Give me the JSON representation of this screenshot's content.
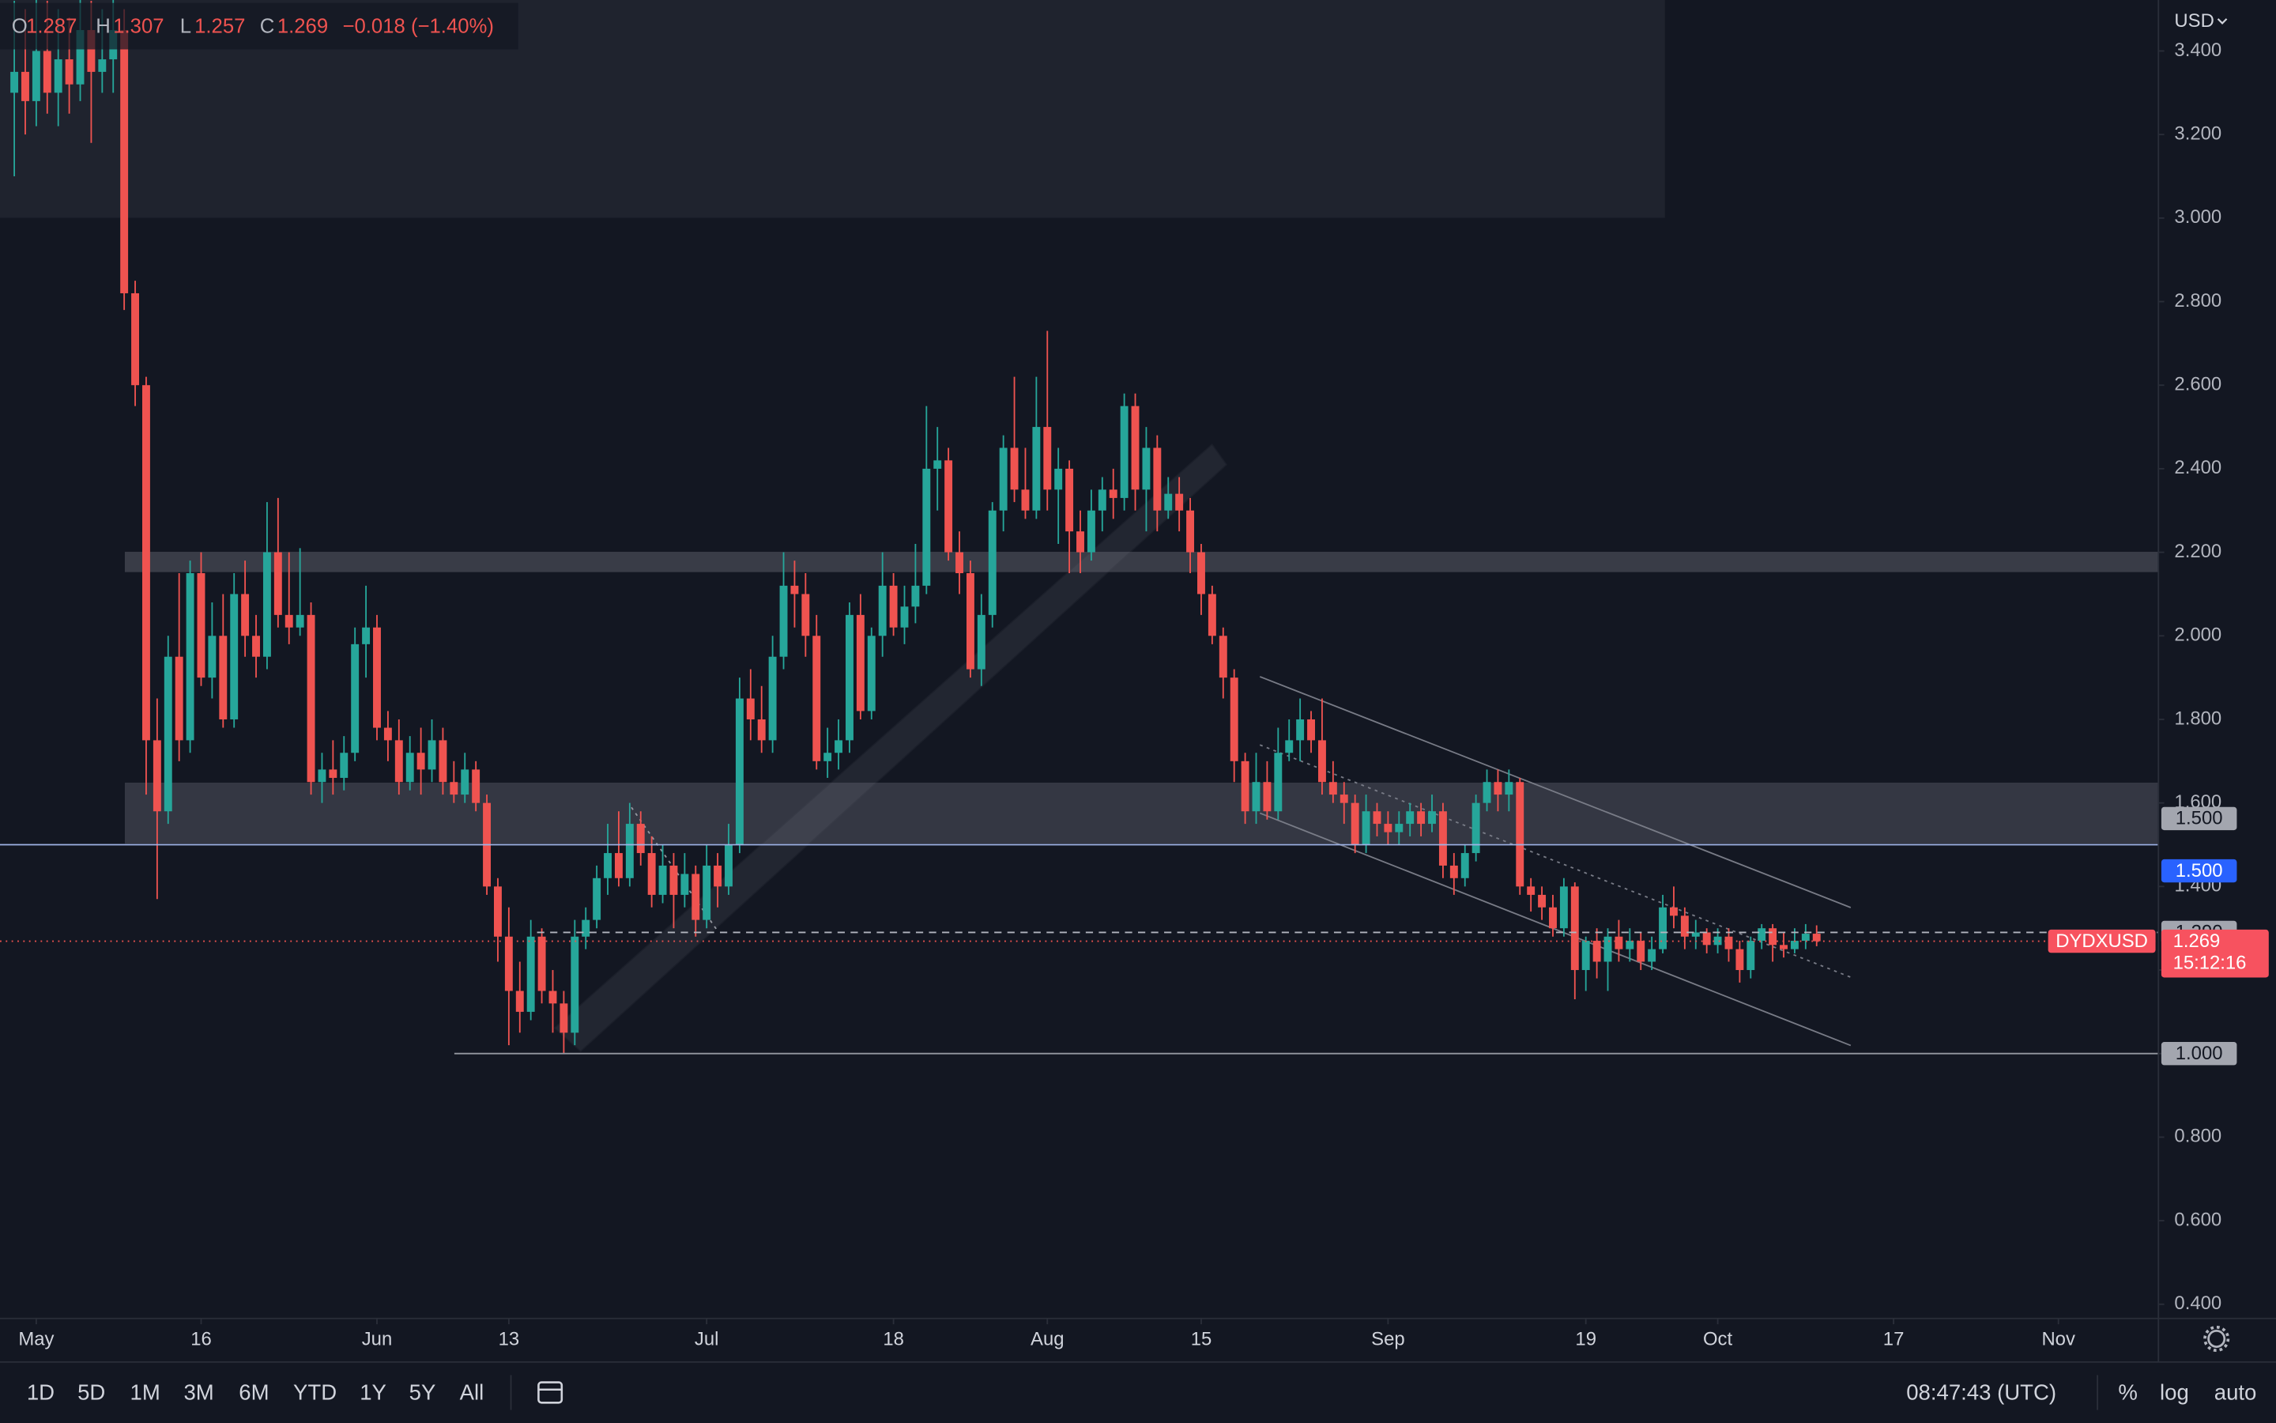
{
  "chart_data": {
    "type": "candlestick",
    "symbol": "DYDXUSD",
    "currency": "USD",
    "countdown": "15:12:16",
    "change": "−0.018 (−1.40%)",
    "ohlc_letters": [
      "O",
      "H",
      "L",
      "C"
    ],
    "up_color": "#26a69a",
    "down_color": "#ef5350",
    "grid": false,
    "xlim": [
      -3.3,
      193.1
    ],
    "xticks": [
      {
        "value": 0,
        "label": "May"
      },
      {
        "value": 15,
        "label": "16"
      },
      {
        "value": 31,
        "label": "Jun"
      },
      {
        "value": 43,
        "label": "13"
      },
      {
        "value": 61,
        "label": "Jul"
      },
      {
        "value": 78,
        "label": "18"
      },
      {
        "value": 92,
        "label": "Aug"
      },
      {
        "value": 106,
        "label": "15"
      },
      {
        "value": 123,
        "label": "Sep"
      },
      {
        "value": 141,
        "label": "19"
      },
      {
        "value": 153,
        "label": "Oct"
      },
      {
        "value": 169,
        "label": "17"
      },
      {
        "value": 184,
        "label": "Nov"
      }
    ],
    "ylim": [
      0.366,
      3.522
    ],
    "yticks": [
      {
        "value": 0.4,
        "label": "0.400"
      },
      {
        "value": 0.6,
        "label": "0.600"
      },
      {
        "value": 0.8,
        "label": "0.800"
      },
      {
        "value": 1.0,
        "label": "1.000"
      },
      {
        "value": 1.2,
        "label": "1.200"
      },
      {
        "value": 1.4,
        "label": "1.400"
      },
      {
        "value": 1.6,
        "label": "1.600"
      },
      {
        "value": 1.8,
        "label": "1.800"
      },
      {
        "value": 2.0,
        "label": "2.000"
      },
      {
        "value": 2.2,
        "label": "2.200"
      },
      {
        "value": 2.4,
        "label": "2.400"
      },
      {
        "value": 2.6,
        "label": "2.600"
      },
      {
        "value": 2.8,
        "label": "2.800"
      },
      {
        "value": 3.0,
        "label": "3.000"
      },
      {
        "value": 3.2,
        "label": "3.200"
      },
      {
        "value": 3.4,
        "label": "3.400"
      }
    ],
    "levels": [
      {
        "value": 1.5,
        "label": "1.500",
        "color": "#a3a6af"
      },
      {
        "value": 1.5,
        "label": "1.500",
        "color": "#2962ff"
      },
      {
        "value": 1.29,
        "label": "1.290",
        "color": "#a3a6af"
      },
      {
        "value": 1.0,
        "label": "1.000",
        "color": "#a3a6af"
      }
    ],
    "x": [
      -2,
      -1,
      0,
      1,
      2,
      3,
      4,
      5,
      6,
      7,
      8,
      9,
      10,
      11,
      12,
      13,
      14,
      15,
      16,
      17,
      18,
      19,
      20,
      21,
      22,
      23,
      24,
      25,
      26,
      27,
      28,
      29,
      30,
      31,
      32,
      33,
      34,
      35,
      36,
      37,
      38,
      39,
      40,
      41,
      42,
      43,
      44,
      45,
      46,
      47,
      48,
      49,
      50,
      51,
      52,
      53,
      54,
      55,
      56,
      57,
      58,
      59,
      60,
      61,
      62,
      63,
      64,
      65,
      66,
      67,
      68,
      69,
      70,
      71,
      72,
      73,
      74,
      75,
      76,
      77,
      78,
      79,
      80,
      81,
      82,
      83,
      84,
      85,
      86,
      87,
      88,
      89,
      90,
      91,
      92,
      93,
      94,
      95,
      96,
      97,
      98,
      99,
      100,
      101,
      102,
      103,
      104,
      105,
      106,
      107,
      108,
      109,
      110,
      111,
      112,
      113,
      114,
      115,
      116,
      117,
      118,
      119,
      120,
      121,
      122,
      123,
      124,
      125,
      126,
      127,
      128,
      129,
      130,
      131,
      132,
      133,
      134,
      135,
      136,
      137,
      138,
      139,
      140,
      141,
      142,
      143,
      144,
      145,
      146,
      147,
      148,
      149,
      150,
      151,
      152,
      153,
      154,
      155,
      156,
      157,
      158,
      159,
      160,
      161,
      162
    ],
    "open": [
      3.3,
      3.35,
      3.28,
      3.4,
      3.3,
      3.38,
      3.32,
      3.45,
      3.35,
      3.38,
      3.45,
      2.82,
      2.6,
      1.75,
      1.58,
      1.95,
      1.75,
      2.15,
      1.9,
      2.0,
      1.8,
      2.1,
      2.0,
      1.95,
      2.2,
      2.05,
      2.02,
      2.05,
      1.65,
      1.68,
      1.66,
      1.72,
      1.98,
      2.02,
      1.78,
      1.75,
      1.65,
      1.72,
      1.68,
      1.75,
      1.65,
      1.62,
      1.68,
      1.6,
      1.4,
      1.28,
      1.15,
      1.1,
      1.28,
      1.15,
      1.12,
      1.05,
      1.28,
      1.32,
      1.42,
      1.48,
      1.42,
      1.55,
      1.48,
      1.38,
      1.45,
      1.38,
      1.43,
      1.32,
      1.45,
      1.4,
      1.5,
      1.85,
      1.8,
      1.75,
      1.95,
      2.12,
      2.1,
      2.0,
      1.7,
      1.72,
      1.75,
      2.05,
      1.82,
      2.0,
      2.12,
      2.02,
      2.07,
      2.12,
      2.4,
      2.42,
      2.2,
      2.15,
      1.92,
      2.05,
      2.3,
      2.45,
      2.35,
      2.3,
      2.5,
      2.35,
      2.4,
      2.25,
      2.2,
      2.3,
      2.35,
      2.33,
      2.55,
      2.35,
      2.45,
      2.3,
      2.34,
      2.3,
      2.2,
      2.1,
      2.0,
      1.9,
      1.7,
      1.58,
      1.65,
      1.58,
      1.72,
      1.75,
      1.8,
      1.75,
      1.65,
      1.62,
      1.6,
      1.5,
      1.58,
      1.55,
      1.53,
      1.55,
      1.58,
      1.55,
      1.58,
      1.45,
      1.42,
      1.48,
      1.6,
      1.65,
      1.62,
      1.65,
      1.4,
      1.38,
      1.35,
      1.3,
      1.4,
      1.2,
      1.27,
      1.22,
      1.28,
      1.25,
      1.27,
      1.22,
      1.25,
      1.35,
      1.33,
      1.28,
      1.29,
      1.26,
      1.28,
      1.25,
      1.2,
      1.27,
      1.3,
      1.26,
      1.25,
      1.27,
      1.287
    ],
    "high": [
      3.52,
      3.5,
      3.55,
      3.52,
      3.5,
      3.48,
      3.55,
      3.52,
      3.5,
      3.56,
      3.5,
      2.85,
      2.62,
      1.85,
      2.0,
      2.15,
      2.18,
      2.2,
      2.08,
      2.1,
      2.15,
      2.18,
      2.05,
      2.32,
      2.33,
      2.2,
      2.21,
      2.08,
      1.72,
      1.75,
      1.76,
      2.02,
      2.12,
      2.05,
      1.82,
      1.8,
      1.76,
      1.78,
      1.8,
      1.78,
      1.7,
      1.72,
      1.7,
      1.62,
      1.42,
      1.35,
      1.22,
      1.32,
      1.3,
      1.2,
      1.15,
      1.32,
      1.35,
      1.45,
      1.55,
      1.58,
      1.6,
      1.58,
      1.52,
      1.5,
      1.48,
      1.48,
      1.45,
      1.5,
      1.48,
      1.55,
      1.9,
      1.92,
      1.88,
      2.0,
      2.2,
      2.18,
      2.15,
      2.05,
      1.78,
      1.8,
      2.08,
      2.1,
      2.02,
      2.2,
      2.15,
      2.12,
      2.22,
      2.55,
      2.5,
      2.45,
      2.25,
      2.18,
      2.1,
      2.32,
      2.48,
      2.62,
      2.45,
      2.62,
      2.73,
      2.45,
      2.42,
      2.3,
      2.35,
      2.38,
      2.4,
      2.58,
      2.58,
      2.5,
      2.48,
      2.38,
      2.38,
      2.33,
      2.22,
      2.12,
      2.02,
      1.92,
      1.72,
      1.72,
      1.7,
      1.78,
      1.8,
      1.85,
      1.82,
      1.85,
      1.7,
      1.65,
      1.62,
      1.62,
      1.6,
      1.58,
      1.58,
      1.6,
      1.6,
      1.62,
      1.6,
      1.48,
      1.5,
      1.62,
      1.68,
      1.68,
      1.68,
      1.66,
      1.42,
      1.4,
      1.38,
      1.42,
      1.41,
      1.28,
      1.3,
      1.3,
      1.32,
      1.3,
      1.29,
      1.28,
      1.38,
      1.4,
      1.35,
      1.32,
      1.3,
      1.3,
      1.3,
      1.27,
      1.28,
      1.31,
      1.31,
      1.29,
      1.3,
      1.31,
      1.307
    ],
    "low": [
      3.1,
      3.2,
      3.22,
      3.25,
      3.22,
      3.25,
      3.28,
      3.18,
      3.3,
      3.3,
      2.78,
      2.55,
      1.62,
      1.37,
      1.55,
      1.7,
      1.72,
      1.88,
      1.85,
      1.78,
      1.78,
      1.95,
      1.9,
      1.92,
      2.02,
      1.98,
      2.0,
      1.62,
      1.6,
      1.62,
      1.63,
      1.7,
      1.9,
      1.75,
      1.7,
      1.62,
      1.63,
      1.62,
      1.65,
      1.62,
      1.6,
      1.6,
      1.58,
      1.38,
      1.22,
      1.02,
      1.05,
      1.08,
      1.12,
      1.05,
      1.0,
      1.02,
      1.25,
      1.3,
      1.38,
      1.4,
      1.4,
      1.45,
      1.35,
      1.36,
      1.3,
      1.35,
      1.28,
      1.3,
      1.35,
      1.38,
      1.48,
      1.75,
      1.72,
      1.72,
      1.92,
      2.02,
      1.95,
      1.68,
      1.66,
      1.68,
      1.72,
      1.8,
      1.8,
      1.95,
      2.0,
      1.98,
      2.03,
      2.1,
      2.3,
      2.18,
      2.1,
      1.9,
      1.88,
      2.02,
      2.25,
      2.32,
      2.28,
      2.28,
      2.3,
      2.22,
      2.15,
      2.15,
      2.18,
      2.25,
      2.28,
      2.3,
      2.3,
      2.25,
      2.25,
      2.28,
      2.25,
      2.15,
      2.05,
      1.98,
      1.85,
      1.65,
      1.55,
      1.55,
      1.56,
      1.56,
      1.7,
      1.7,
      1.72,
      1.62,
      1.6,
      1.55,
      1.48,
      1.48,
      1.52,
      1.5,
      1.5,
      1.52,
      1.52,
      1.53,
      1.42,
      1.38,
      1.4,
      1.46,
      1.58,
      1.58,
      1.58,
      1.38,
      1.34,
      1.32,
      1.28,
      1.28,
      1.13,
      1.15,
      1.18,
      1.15,
      1.22,
      1.22,
      1.2,
      1.2,
      1.24,
      1.3,
      1.25,
      1.25,
      1.24,
      1.24,
      1.22,
      1.17,
      1.18,
      1.25,
      1.22,
      1.23,
      1.24,
      1.25,
      1.257
    ],
    "close": [
      3.35,
      3.28,
      3.4,
      3.3,
      3.38,
      3.32,
      3.45,
      3.35,
      3.38,
      3.45,
      2.82,
      2.6,
      1.75,
      1.58,
      1.95,
      1.75,
      2.15,
      1.9,
      2.0,
      1.8,
      2.1,
      2.0,
      1.95,
      2.2,
      2.05,
      2.02,
      2.05,
      1.65,
      1.68,
      1.66,
      1.72,
      1.98,
      2.02,
      1.78,
      1.75,
      1.65,
      1.72,
      1.68,
      1.75,
      1.65,
      1.62,
      1.68,
      1.6,
      1.4,
      1.28,
      1.15,
      1.1,
      1.28,
      1.15,
      1.12,
      1.05,
      1.28,
      1.32,
      1.42,
      1.48,
      1.42,
      1.55,
      1.48,
      1.38,
      1.45,
      1.38,
      1.43,
      1.32,
      1.45,
      1.4,
      1.5,
      1.85,
      1.8,
      1.75,
      1.95,
      2.12,
      2.1,
      2.0,
      1.7,
      1.72,
      1.75,
      2.05,
      1.82,
      2.0,
      2.12,
      2.02,
      2.07,
      2.12,
      2.4,
      2.42,
      2.2,
      2.15,
      1.92,
      2.05,
      2.3,
      2.45,
      2.35,
      2.3,
      2.5,
      2.35,
      2.4,
      2.25,
      2.2,
      2.3,
      2.35,
      2.33,
      2.55,
      2.35,
      2.45,
      2.3,
      2.34,
      2.3,
      2.2,
      2.1,
      2.0,
      1.9,
      1.7,
      1.58,
      1.65,
      1.58,
      1.72,
      1.75,
      1.8,
      1.75,
      1.65,
      1.62,
      1.6,
      1.5,
      1.58,
      1.55,
      1.53,
      1.55,
      1.58,
      1.55,
      1.58,
      1.45,
      1.42,
      1.48,
      1.6,
      1.65,
      1.62,
      1.65,
      1.4,
      1.38,
      1.35,
      1.3,
      1.4,
      1.2,
      1.27,
      1.22,
      1.28,
      1.25,
      1.27,
      1.22,
      1.25,
      1.35,
      1.33,
      1.28,
      1.29,
      1.26,
      1.28,
      1.25,
      1.2,
      1.27,
      1.3,
      1.26,
      1.25,
      1.27,
      1.287,
      1.269
    ]
  },
  "toolbar": {
    "timeframes": [
      "1D",
      "5D",
      "1M",
      "3M",
      "6M",
      "YTD",
      "1Y",
      "5Y",
      "All"
    ],
    "clock": "08:47:43 (UTC)",
    "scale_buttons": [
      "%",
      "log",
      "auto"
    ]
  }
}
